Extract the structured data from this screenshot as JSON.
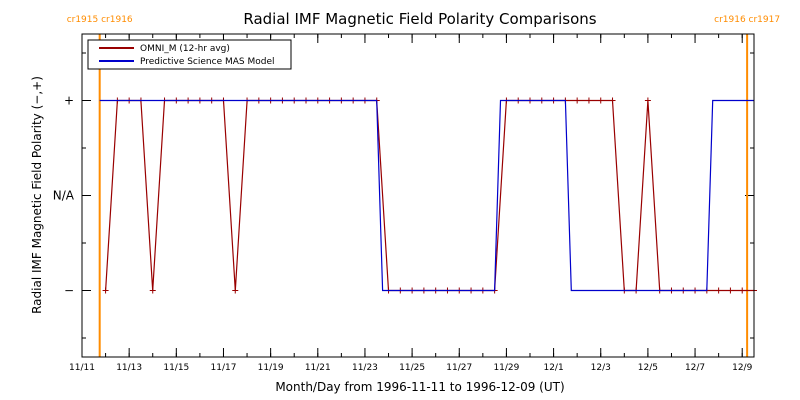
{
  "chart_data": {
    "type": "line",
    "title": "Radial IMF Magnetic Field Polarity Comparisons",
    "xlabel": "Month/Day from 1996-11-11 to 1996-12-09 (UT)",
    "ylabel": "Radial IMF Magnetic Field Polarity (−,+)",
    "xlim": [
      "1996-11-11",
      "1996-12-09T12:00"
    ],
    "ylim": [
      -1.7,
      1.7
    ],
    "x_tick_labels": [
      "11/11",
      "11/13",
      "11/15",
      "11/17",
      "11/19",
      "11/21",
      "11/23",
      "11/25",
      "11/27",
      "11/29",
      "12/1",
      "12/3",
      "12/5",
      "12/7",
      "12/9"
    ],
    "y_tick_labels": [
      {
        "value": 1,
        "label": "+"
      },
      {
        "value": 0,
        "label": "N/A"
      },
      {
        "value": -1,
        "label": "−"
      }
    ],
    "grid": false,
    "legend_position": "top-left",
    "carrington_markers": [
      {
        "label": "cr1915 cr1916",
        "date": "1996-11-11T18:00",
        "color": "#ff8c00"
      },
      {
        "label": "cr1916 cr1917",
        "date": "1996-12-09T05:00",
        "color": "#ff8c00"
      }
    ],
    "series": [
      {
        "name": "OMNI_M (12-hr avg)",
        "color": "#990000",
        "marker": "+",
        "x": [
          "1996-11-12T00:00",
          "1996-11-12T12:00",
          "1996-11-13T00:00",
          "1996-11-13T12:00",
          "1996-11-14T00:00",
          "1996-11-14T12:00",
          "1996-11-15T00:00",
          "1996-11-15T12:00",
          "1996-11-16T00:00",
          "1996-11-16T12:00",
          "1996-11-17T00:00",
          "1996-11-17T12:00",
          "1996-11-18T00:00",
          "1996-11-18T12:00",
          "1996-11-19T00:00",
          "1996-11-19T12:00",
          "1996-11-20T00:00",
          "1996-11-20T12:00",
          "1996-11-21T00:00",
          "1996-11-21T12:00",
          "1996-11-22T00:00",
          "1996-11-22T12:00",
          "1996-11-23T00:00",
          "1996-11-23T12:00",
          "1996-11-24T00:00",
          "1996-11-24T12:00",
          "1996-11-25T00:00",
          "1996-11-25T12:00",
          "1996-11-26T00:00",
          "1996-11-26T12:00",
          "1996-11-27T00:00",
          "1996-11-27T12:00",
          "1996-11-28T00:00",
          "1996-11-28T12:00",
          "1996-11-29T00:00",
          "1996-11-29T12:00",
          "1996-11-30T00:00",
          "1996-11-30T12:00",
          "1996-12-01T00:00",
          "1996-12-01T12:00",
          "1996-12-02T00:00",
          "1996-12-02T12:00",
          "1996-12-03T00:00",
          "1996-12-03T12:00",
          "1996-12-04T00:00",
          "1996-12-04T12:00",
          "1996-12-05T00:00",
          "1996-12-05T12:00",
          "1996-12-06T00:00",
          "1996-12-06T12:00",
          "1996-12-07T00:00",
          "1996-12-07T12:00",
          "1996-12-08T00:00",
          "1996-12-08T12:00",
          "1996-12-09T00:00",
          "1996-12-09T12:00"
        ],
        "y": [
          -1,
          1,
          1,
          1,
          -1,
          1,
          1,
          1,
          1,
          1,
          1,
          -1,
          1,
          1,
          1,
          1,
          1,
          1,
          1,
          1,
          1,
          1,
          1,
          1,
          -1,
          -1,
          -1,
          -1,
          -1,
          -1,
          -1,
          -1,
          -1,
          -1,
          1,
          1,
          1,
          1,
          1,
          1,
          1,
          1,
          1,
          1,
          -1,
          -1,
          1,
          -1,
          -1,
          -1,
          -1,
          -1,
          -1,
          -1,
          -1,
          -1
        ]
      },
      {
        "name": "Predictive Science MAS Model",
        "color": "#0000cc",
        "x": [
          "1996-11-11T18:00",
          "1996-11-23T12:00",
          "1996-11-23T18:00",
          "1996-11-28T12:00",
          "1996-11-28T18:00",
          "1996-12-01T12:00",
          "1996-12-01T18:00",
          "1996-12-07T12:00",
          "1996-12-07T18:00",
          "1996-12-09T12:00"
        ],
        "y": [
          1,
          1,
          -1,
          -1,
          1,
          1,
          -1,
          -1,
          1,
          1
        ]
      }
    ]
  }
}
